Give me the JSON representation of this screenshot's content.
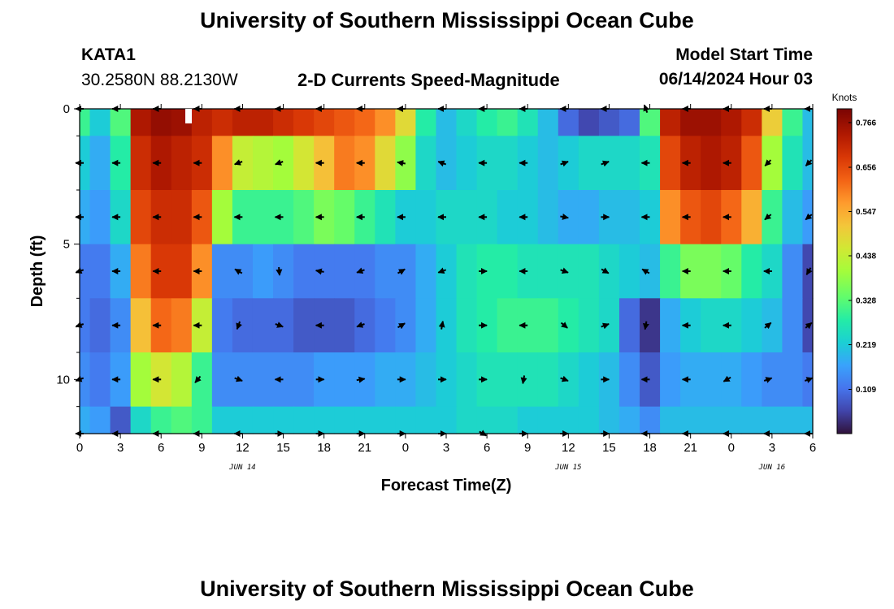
{
  "page": {
    "title": "University of Southern Mississippi Ocean Cube",
    "footer_title": "University of Southern Mississippi Ocean Cube",
    "station": "KATA1",
    "coords": "30.2580N  88.2130W",
    "subtitle": "2-D Currents Speed-Magnitude",
    "model_start_label": "Model Start Time",
    "model_start_value": "06/14/2024 Hour 03"
  },
  "chart_data": {
    "type": "heatmap",
    "title": "2-D Currents Speed-Magnitude",
    "xlabel": "Forecast Time(Z)",
    "ylabel": "Depth (ft)",
    "x_hours": [
      0,
      1.5,
      3,
      4.5,
      6,
      7.5,
      9,
      10.5,
      12,
      13.5,
      15,
      16.5,
      18,
      19.5,
      21,
      22.5,
      24,
      25.5,
      27,
      28.5,
      30,
      31.5,
      33,
      34.5,
      36,
      37.5,
      39,
      40.5,
      42,
      43.5,
      45,
      46.5,
      48,
      49.5,
      51,
      52.5,
      54
    ],
    "depth_ft": [
      0,
      2,
      4,
      6,
      8,
      10,
      12
    ],
    "speed_knots": [
      [
        0.3,
        0.22,
        0.32,
        0.74,
        0.77,
        0.76,
        0.72,
        0.7,
        0.72,
        0.72,
        0.7,
        0.68,
        0.66,
        0.64,
        0.62,
        0.58,
        0.48,
        0.28,
        0.2,
        0.24,
        0.28,
        0.3,
        0.26,
        0.2,
        0.1,
        0.06,
        0.08,
        0.1,
        0.32,
        0.72,
        0.76,
        0.76,
        0.74,
        0.7,
        0.5,
        0.3,
        0.2
      ],
      [
        0.22,
        0.18,
        0.28,
        0.7,
        0.74,
        0.72,
        0.7,
        0.58,
        0.44,
        0.42,
        0.4,
        0.46,
        0.52,
        0.6,
        0.58,
        0.48,
        0.38,
        0.24,
        0.2,
        0.22,
        0.24,
        0.24,
        0.22,
        0.2,
        0.22,
        0.24,
        0.24,
        0.24,
        0.26,
        0.66,
        0.72,
        0.74,
        0.72,
        0.64,
        0.4,
        0.26,
        0.2
      ],
      [
        0.18,
        0.16,
        0.24,
        0.66,
        0.7,
        0.7,
        0.64,
        0.4,
        0.3,
        0.3,
        0.3,
        0.32,
        0.36,
        0.34,
        0.3,
        0.26,
        0.22,
        0.22,
        0.24,
        0.24,
        0.24,
        0.22,
        0.22,
        0.2,
        0.18,
        0.18,
        0.2,
        0.2,
        0.22,
        0.58,
        0.64,
        0.66,
        0.62,
        0.54,
        0.3,
        0.2,
        0.16
      ],
      [
        0.12,
        0.12,
        0.18,
        0.6,
        0.68,
        0.68,
        0.58,
        0.14,
        0.14,
        0.16,
        0.14,
        0.12,
        0.12,
        0.12,
        0.12,
        0.14,
        0.14,
        0.18,
        0.22,
        0.26,
        0.28,
        0.28,
        0.26,
        0.26,
        0.26,
        0.26,
        0.24,
        0.22,
        0.2,
        0.3,
        0.36,
        0.36,
        0.34,
        0.28,
        0.24,
        0.14,
        0.06
      ],
      [
        0.12,
        0.1,
        0.14,
        0.52,
        0.62,
        0.6,
        0.44,
        0.12,
        0.1,
        0.1,
        0.1,
        0.08,
        0.08,
        0.08,
        0.1,
        0.12,
        0.14,
        0.18,
        0.22,
        0.26,
        0.28,
        0.3,
        0.3,
        0.3,
        0.28,
        0.26,
        0.24,
        0.1,
        0.04,
        0.18,
        0.22,
        0.24,
        0.24,
        0.22,
        0.2,
        0.14,
        0.06
      ],
      [
        0.14,
        0.12,
        0.16,
        0.4,
        0.46,
        0.42,
        0.3,
        0.14,
        0.14,
        0.14,
        0.14,
        0.14,
        0.16,
        0.16,
        0.16,
        0.18,
        0.18,
        0.2,
        0.22,
        0.24,
        0.26,
        0.26,
        0.26,
        0.26,
        0.24,
        0.22,
        0.2,
        0.14,
        0.08,
        0.16,
        0.18,
        0.18,
        0.18,
        0.16,
        0.14,
        0.14,
        0.12
      ],
      [
        0.18,
        0.16,
        0.08,
        0.24,
        0.3,
        0.32,
        0.3,
        0.22,
        0.22,
        0.22,
        0.22,
        0.22,
        0.22,
        0.22,
        0.22,
        0.22,
        0.22,
        0.22,
        0.22,
        0.24,
        0.24,
        0.24,
        0.22,
        0.22,
        0.22,
        0.22,
        0.2,
        0.18,
        0.14,
        0.2,
        0.2,
        0.2,
        0.2,
        0.2,
        0.2,
        0.2,
        0.2
      ]
    ],
    "x_ticks": [
      0,
      3,
      6,
      9,
      12,
      15,
      18,
      21,
      24,
      27,
      30,
      33,
      36,
      39,
      42,
      45,
      48,
      51,
      54
    ],
    "x_tick_labels": [
      "0",
      "3",
      "6",
      "9",
      "12",
      "15",
      "18",
      "21",
      "0",
      "3",
      "6",
      "9",
      "12",
      "15",
      "18",
      "21",
      "0",
      "3",
      "6"
    ],
    "date_labels": [
      {
        "text": "JUN 14",
        "hour": 12
      },
      {
        "text": "JUN 15",
        "hour": 36
      },
      {
        "text": "JUN 16",
        "hour": 51
      }
    ],
    "y_ticks": [
      0,
      5,
      10
    ],
    "y_tick_labels": [
      "0",
      "5",
      "10"
    ],
    "xlim": [
      0,
      54
    ],
    "ylim": [
      0,
      12
    ],
    "colorbar": {
      "label": "Knots",
      "min": 0.0,
      "max": 0.8,
      "ticks": [
        0.766,
        0.656,
        0.547,
        0.438,
        0.328,
        0.219,
        0.109
      ],
      "tick_labels": [
        "0.766",
        "0.656",
        "0.547",
        "0.438",
        "0.328",
        "0.219",
        "0.109"
      ]
    },
    "vectors": {
      "hours": [
        0,
        2.7,
        5.7,
        8.7,
        11.7,
        14.7,
        17.7,
        20.7,
        23.7,
        26.7,
        29.7,
        32.7,
        35.7,
        38.7,
        41.7,
        44.7,
        47.7,
        50.7,
        53.7
      ],
      "depths_ft": [
        0,
        2,
        4,
        6,
        8,
        10,
        12
      ],
      "angles_deg": [
        [
          180,
          180,
          180,
          180,
          180,
          180,
          180,
          180,
          180,
          180,
          180,
          180,
          180,
          180,
          110,
          180,
          180,
          180,
          180
        ],
        [
          180,
          180,
          180,
          180,
          200,
          200,
          180,
          180,
          170,
          160,
          180,
          180,
          20,
          20,
          180,
          180,
          180,
          225,
          225
        ],
        [
          180,
          180,
          180,
          180,
          180,
          180,
          180,
          180,
          180,
          180,
          180,
          180,
          350,
          0,
          180,
          180,
          180,
          220,
          220
        ],
        [
          200,
          180,
          180,
          180,
          150,
          275,
          170,
          200,
          30,
          200,
          0,
          180,
          340,
          330,
          150,
          180,
          180,
          180,
          240
        ],
        [
          200,
          180,
          180,
          180,
          250,
          340,
          180,
          200,
          30,
          80,
          0,
          180,
          320,
          20,
          260,
          180,
          180,
          40,
          40
        ],
        [
          200,
          180,
          180,
          230,
          340,
          180,
          0,
          10,
          0,
          0,
          0,
          260,
          340,
          0,
          180,
          180,
          210,
          20,
          20
        ],
        [
          180,
          180,
          180,
          180,
          180,
          0,
          0,
          0,
          0,
          0,
          330,
          0,
          0,
          0,
          180,
          180,
          180,
          180,
          180
        ]
      ]
    }
  }
}
